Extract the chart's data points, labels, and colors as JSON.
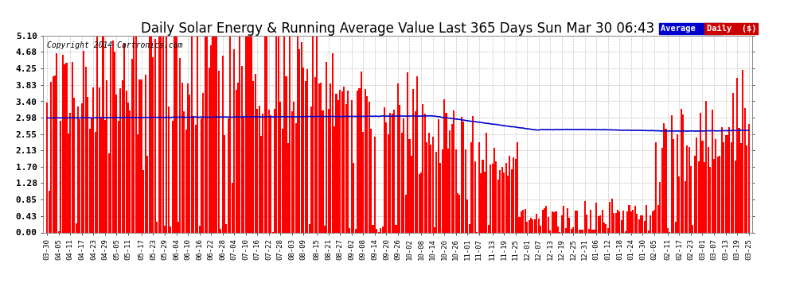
{
  "title": "Daily Solar Energy & Running Average Value Last 365 Days Sun Mar 30 06:43",
  "copyright": "Copyright 2014 Cartronics.com",
  "yticks": [
    0.0,
    0.43,
    0.85,
    1.28,
    1.7,
    2.13,
    2.55,
    2.98,
    3.4,
    3.83,
    4.25,
    4.68,
    5.1
  ],
  "ylim": [
    0.0,
    5.1
  ],
  "bar_color": "#FF0000",
  "avg_color": "#0000CC",
  "background_color": "#FFFFFF",
  "plot_bg_color": "#FFFFFF",
  "grid_color": "#AAAAAA",
  "title_fontsize": 12,
  "legend_avg_label": "Average  ($)",
  "legend_daily_label": "Daily  ($)",
  "avg_bg": "#0000CC",
  "daily_bg": "#CC0000",
  "x_labels_every6": [
    "03-30",
    "04-05",
    "04-11",
    "04-17",
    "04-23",
    "04-29",
    "05-05",
    "05-11",
    "05-17",
    "05-23",
    "05-29",
    "06-04",
    "06-10",
    "06-16",
    "06-22",
    "06-28",
    "07-04",
    "07-10",
    "07-16",
    "07-22",
    "07-28",
    "08-03",
    "08-09",
    "08-15",
    "08-21",
    "08-27",
    "09-02",
    "09-08",
    "09-14",
    "09-20",
    "09-26",
    "10-02",
    "10-08",
    "10-14",
    "10-20",
    "10-26",
    "11-01",
    "11-07",
    "11-13",
    "11-19",
    "11-25",
    "12-01",
    "12-07",
    "12-13",
    "12-19",
    "12-25",
    "12-31",
    "01-06",
    "01-12",
    "01-18",
    "01-24",
    "01-30",
    "02-05",
    "02-11",
    "02-17",
    "02-23",
    "03-01",
    "03-07",
    "03-13",
    "03-19",
    "03-25"
  ]
}
